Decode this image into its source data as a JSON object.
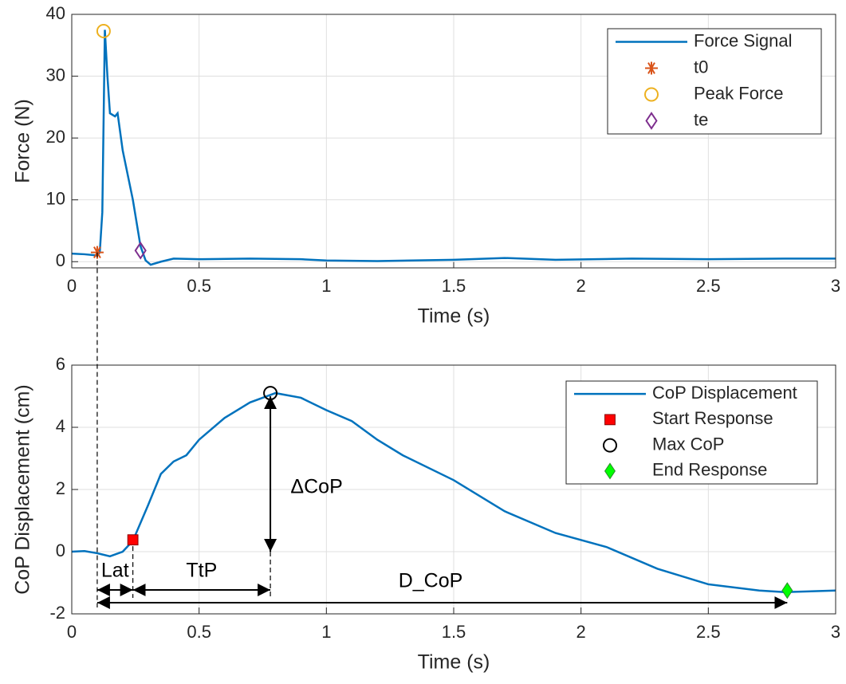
{
  "chart_data": [
    {
      "type": "line",
      "xlabel": "Time (s)",
      "ylabel": "Force (N)",
      "xlim": [
        0,
        3
      ],
      "ylim": [
        -1,
        40
      ],
      "xticks": [
        0,
        0.5,
        1,
        1.5,
        2,
        2.5,
        3
      ],
      "yticks": [
        0,
        10,
        20,
        30,
        40
      ],
      "grid": true,
      "legend": "upper right",
      "series": [
        {
          "name": "Force Signal",
          "color": "#0072bd",
          "marker": "none",
          "x": [
            0,
            0.05,
            0.1,
            0.11,
            0.12,
            0.13,
            0.14,
            0.15,
            0.17,
            0.18,
            0.2,
            0.24,
            0.27,
            0.29,
            0.31,
            0.35,
            0.4,
            0.5,
            0.7,
            0.9,
            1.0,
            1.2,
            1.5,
            1.7,
            1.9,
            2.2,
            2.5,
            2.8,
            3
          ],
          "values": [
            1.3,
            1.2,
            1.0,
            1.5,
            8,
            37.5,
            30,
            24,
            23.5,
            24,
            18,
            10,
            2.5,
            0.2,
            -0.5,
            0,
            0.5,
            0.4,
            0.5,
            0.4,
            0.2,
            0.1,
            0.3,
            0.6,
            0.3,
            0.5,
            0.4,
            0.5,
            0.5
          ]
        },
        {
          "name": "t0",
          "color": "#d95319",
          "marker": "asterisk",
          "x": [
            0.1
          ],
          "values": [
            1.5
          ]
        },
        {
          "name": "Peak Force",
          "color": "#edb120",
          "marker": "circle",
          "x": [
            0.125
          ],
          "values": [
            37.3
          ]
        },
        {
          "name": "te",
          "color": "#7e2f8e",
          "marker": "diamond",
          "x": [
            0.27
          ],
          "values": [
            1.8
          ]
        }
      ]
    },
    {
      "type": "line",
      "xlabel": "Time (s)",
      "ylabel": "CoP Displacement (cm)",
      "xlim": [
        0,
        3
      ],
      "ylim": [
        -2,
        6
      ],
      "xticks": [
        0,
        0.5,
        1,
        1.5,
        2,
        2.5,
        3
      ],
      "yticks": [
        -2,
        0,
        2,
        4,
        6
      ],
      "grid": true,
      "legend": "upper right",
      "series": [
        {
          "name": "CoP Displacement",
          "color": "#0072bd",
          "marker": "none",
          "x": [
            0,
            0.05,
            0.1,
            0.15,
            0.2,
            0.24,
            0.3,
            0.35,
            0.4,
            0.45,
            0.5,
            0.6,
            0.7,
            0.8,
            0.9,
            1.0,
            1.1,
            1.2,
            1.3,
            1.5,
            1.7,
            1.9,
            2.1,
            2.3,
            2.5,
            2.7,
            2.8,
            3
          ],
          "values": [
            0,
            0.02,
            -0.05,
            -0.15,
            0,
            0.35,
            1.5,
            2.5,
            2.9,
            3.1,
            3.6,
            4.3,
            4.8,
            5.1,
            4.95,
            4.55,
            4.2,
            3.6,
            3.1,
            2.3,
            1.3,
            0.6,
            0.15,
            -0.55,
            -1.05,
            -1.25,
            -1.3,
            -1.25
          ]
        },
        {
          "name": "Start Response",
          "color": "#ff0000",
          "marker": "square",
          "x": [
            0.24
          ],
          "values": [
            0.38
          ]
        },
        {
          "name": "Max CoP",
          "color": "#000000",
          "marker": "circle",
          "x": [
            0.78
          ],
          "values": [
            5.1
          ]
        },
        {
          "name": "End Response",
          "color": "#00ff00",
          "marker": "diamond",
          "x": [
            2.81
          ],
          "values": [
            -1.25
          ]
        }
      ],
      "annotations": [
        "Lat",
        "TtP",
        "ΔCoP",
        "D_CoP"
      ]
    }
  ]
}
